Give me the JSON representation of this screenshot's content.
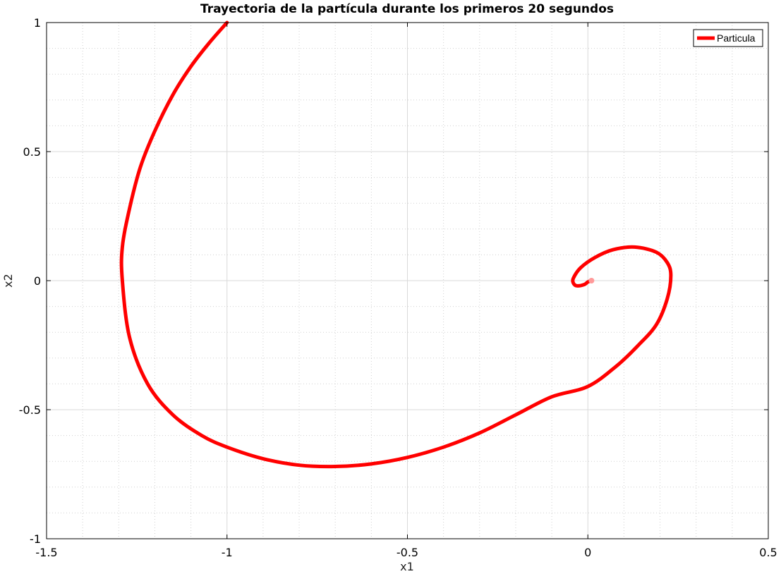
{
  "chart_data": {
    "type": "line",
    "title": "Trayectoria de la partícula durante los primeros 20 segundos",
    "xlabel": "x1",
    "ylabel": "x2",
    "xlim": [
      -1.5,
      0.5
    ],
    "ylim": [
      -1,
      1
    ],
    "x_ticks": [
      -1.5,
      -1,
      -0.5,
      0,
      0.5
    ],
    "x_tick_labels": [
      "-1.5",
      "-1",
      "-0.5",
      "0",
      "0.5"
    ],
    "y_ticks": [
      -1,
      -0.5,
      0,
      0.5,
      1
    ],
    "y_tick_labels": [
      "-1",
      "-0.5",
      "0",
      "0.5",
      "1"
    ],
    "grid": true,
    "minor_grid": true,
    "legend_position": "top-right",
    "series": [
      {
        "name": "Particula",
        "color": "#ff0000",
        "x": [
          -1.0,
          -1.05,
          -1.1,
          -1.15,
          -1.2,
          -1.24,
          -1.27,
          -1.29,
          -1.29,
          -1.27,
          -1.22,
          -1.15,
          -1.07,
          -1.0,
          -0.9,
          -0.8,
          -0.7,
          -0.6,
          -0.5,
          -0.4,
          -0.3,
          -0.2,
          -0.1,
          0.0,
          0.08,
          0.14,
          0.19,
          0.22,
          0.23,
          0.22,
          0.19,
          0.13,
          0.07,
          0.02,
          -0.02,
          -0.04,
          -0.04,
          -0.03,
          -0.01,
          0.0,
          0.01
        ],
        "y": [
          1.0,
          0.92,
          0.83,
          0.72,
          0.58,
          0.44,
          0.28,
          0.13,
          0.0,
          -0.22,
          -0.4,
          -0.52,
          -0.6,
          -0.645,
          -0.69,
          -0.715,
          -0.72,
          -0.71,
          -0.685,
          -0.645,
          -0.59,
          -0.52,
          -0.45,
          -0.41,
          -0.33,
          -0.25,
          -0.17,
          -0.07,
          0.02,
          0.07,
          0.11,
          0.13,
          0.12,
          0.09,
          0.05,
          0.01,
          -0.01,
          -0.02,
          -0.015,
          -0.005,
          0.0
        ]
      }
    ]
  }
}
